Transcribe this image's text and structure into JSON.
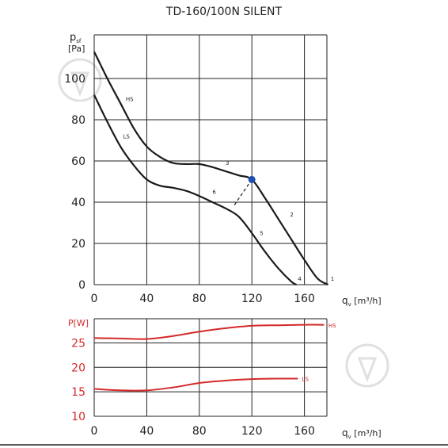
{
  "title": "TD-160/100N SILENT",
  "chart_data": [
    {
      "type": "line",
      "title": "TD-160/100N SILENT",
      "ylabel_main": "p",
      "ylabel_sub": "sf",
      "ylabel_unit": "[Pa]",
      "xlabel_main": "q",
      "xlabel_sub": "v",
      "xlabel_unit": "[m³/h]",
      "xlim": [
        0,
        170
      ],
      "ylim": [
        0,
        115
      ],
      "xticks": [
        "0",
        "40",
        "80",
        "120",
        "160"
      ],
      "yticks": [
        "0",
        "20",
        "40",
        "60",
        "80",
        "100"
      ],
      "grid": true,
      "series": [
        {
          "name": "HS",
          "x": [
            0,
            10,
            20,
            30,
            40,
            50,
            60,
            70,
            80,
            90,
            100,
            110,
            120,
            130,
            140,
            150,
            160,
            170,
            178
          ],
          "y": [
            113,
            100,
            88,
            76,
            67,
            62,
            59,
            58.5,
            58.5,
            57,
            55,
            53,
            51,
            42,
            32,
            22,
            12,
            3,
            0
          ]
        },
        {
          "name": "LS",
          "x": [
            0,
            10,
            20,
            30,
            40,
            50,
            60,
            70,
            80,
            90,
            100,
            110,
            120,
            130,
            140,
            150,
            154
          ],
          "y": [
            92,
            79,
            67,
            58,
            51,
            48,
            47,
            45.5,
            43,
            40,
            37,
            33,
            25,
            16,
            8,
            1.5,
            0
          ]
        }
      ],
      "curve_labels": [
        "HS",
        "LS"
      ],
      "point_labels": [
        "1",
        "2",
        "3",
        "4",
        "5",
        "6"
      ],
      "marker": {
        "x": 120,
        "y": 51,
        "color": "#1f4fb5"
      }
    },
    {
      "type": "line",
      "ylabel": "P[W]",
      "xlabel_main": "q",
      "xlabel_sub": "v",
      "xlabel_unit": "[m³/h]",
      "xlim": [
        0,
        170
      ],
      "ylim": [
        10,
        30
      ],
      "xticks": [
        "0",
        "40",
        "80",
        "120",
        "160"
      ],
      "yticks": [
        "10",
        "15",
        "20",
        "25"
      ],
      "grid": true,
      "series": [
        {
          "name": "HS",
          "x": [
            0,
            20,
            40,
            60,
            80,
            100,
            120,
            140,
            160,
            175
          ],
          "y": [
            26,
            25.9,
            25.8,
            26.4,
            27.3,
            28,
            28.5,
            28.6,
            28.7,
            28.7
          ]
        },
        {
          "name": "LS",
          "x": [
            0,
            20,
            40,
            60,
            80,
            100,
            120,
            140,
            155
          ],
          "y": [
            15.6,
            15.3,
            15.3,
            15.9,
            16.8,
            17.3,
            17.6,
            17.7,
            17.7
          ]
        }
      ],
      "curve_labels": [
        "HS",
        "LS"
      ],
      "color": "#d42a2a"
    }
  ]
}
